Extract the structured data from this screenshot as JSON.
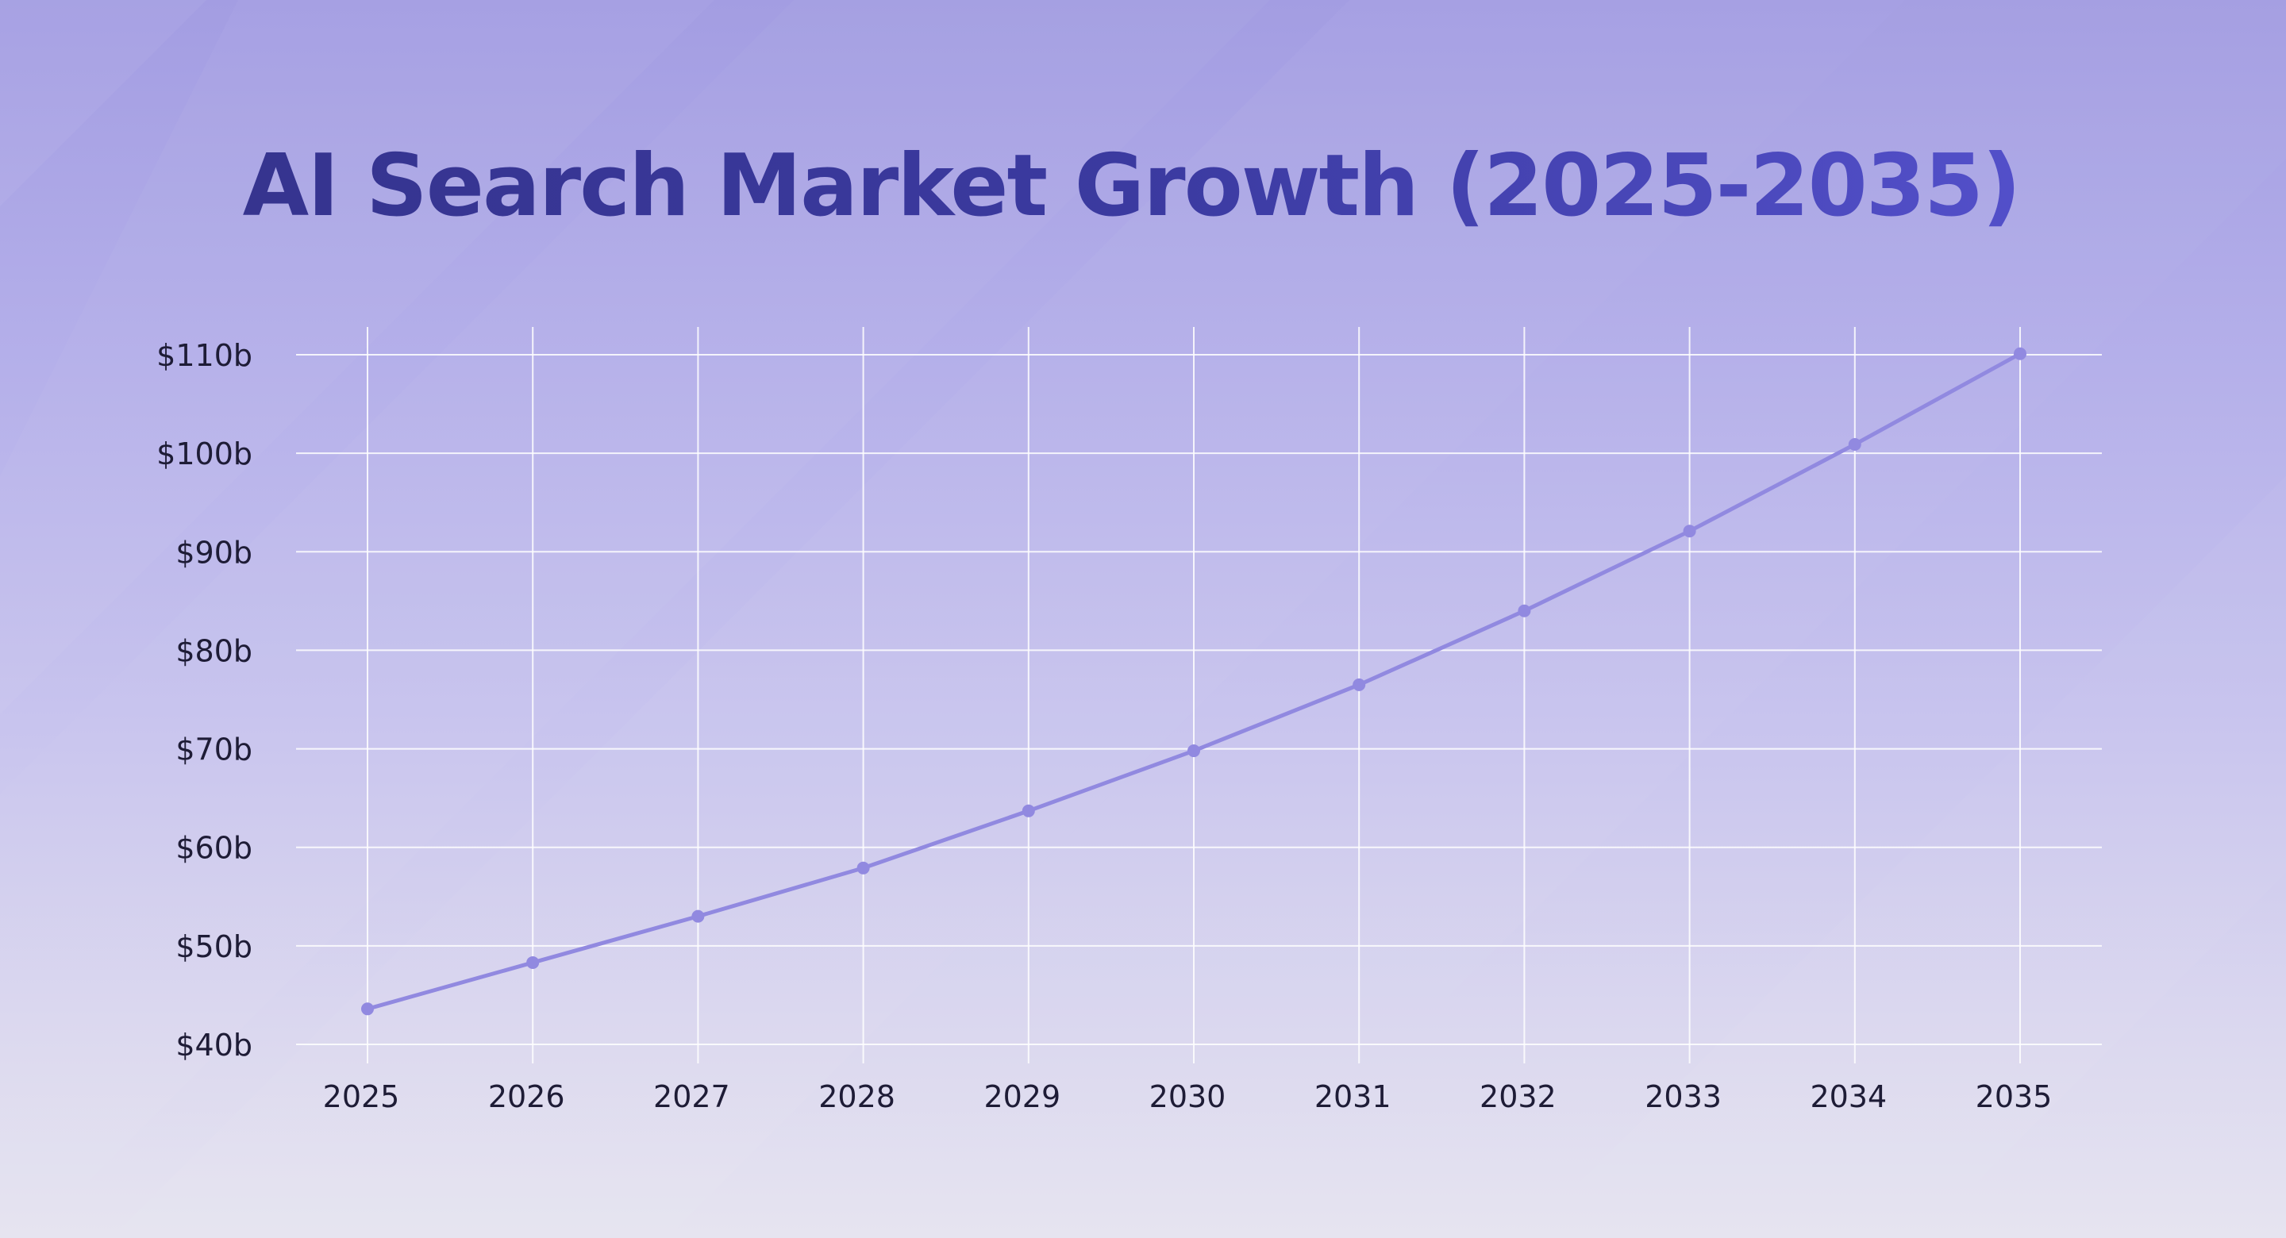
{
  "page": {
    "background_top": "#a39de2",
    "background_bottom": "#e6e4f0"
  },
  "chart_data": {
    "type": "line",
    "title": "AI Search Market Growth (2025-2035)",
    "xlabel": "",
    "ylabel": "",
    "x": [
      "2025",
      "2026",
      "2027",
      "2028",
      "2029",
      "2030",
      "2031",
      "2032",
      "2033",
      "2034",
      "2035"
    ],
    "series": [
      {
        "values": [
          43.6,
          48.3,
          53.0,
          57.9,
          63.7,
          69.8,
          76.5,
          84.0,
          92.1,
          100.9,
          110.1
        ],
        "color": "#9189e0"
      }
    ],
    "ylim": [
      40,
      110
    ],
    "y_ticks": [
      40,
      50,
      60,
      70,
      80,
      90,
      100,
      110
    ],
    "y_tick_labels": [
      "$40b",
      "$50b",
      "$60b",
      "$70b",
      "$80b",
      "$90b",
      "$100b",
      "$110b"
    ],
    "grid": true,
    "grid_color": "#ffffff",
    "title_color": "#3b3aa0",
    "legend": "none"
  }
}
